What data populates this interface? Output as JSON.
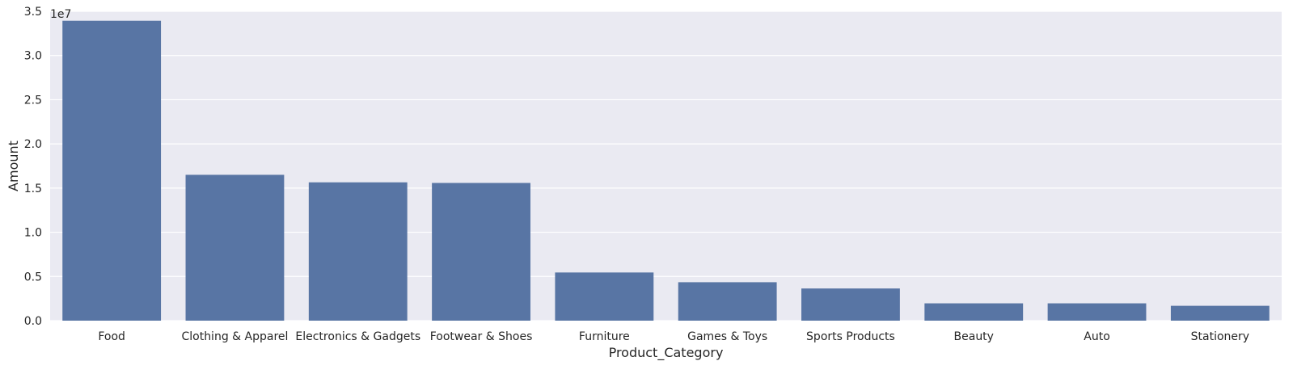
{
  "chart_data": {
    "type": "bar",
    "xlabel": "Product_Category",
    "ylabel": "Amount",
    "y_offset_label": "1e7",
    "y_scale": 10000000,
    "ylim": [
      0,
      3.5
    ],
    "yticks": [
      "0.0",
      "0.5",
      "1.0",
      "1.5",
      "2.0",
      "2.5",
      "3.0",
      "3.5"
    ],
    "grid": true,
    "categories": [
      "Food",
      "Clothing & Apparel",
      "Electronics & Gadgets",
      "Footwear & Shoes",
      "Furniture",
      "Games & Toys",
      "Sports Products",
      "Beauty",
      "Auto",
      "Stationery"
    ],
    "values": [
      33930000,
      16500000,
      15650000,
      15580000,
      5450000,
      4350000,
      3640000,
      1960000,
      1960000,
      1680000
    ],
    "colors": {
      "bar": "#5875a4",
      "plot_bg": "#eaeaf2",
      "grid": "#ffffff"
    }
  }
}
